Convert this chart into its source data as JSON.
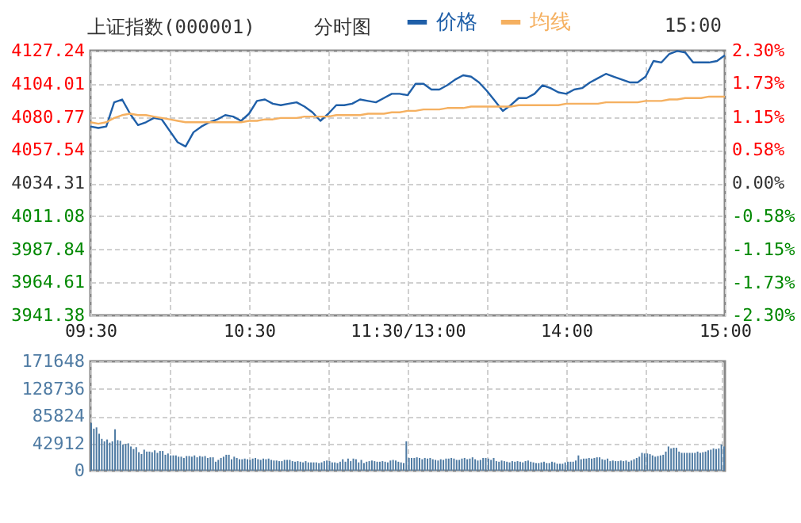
{
  "chart_data": [
    {
      "type": "line",
      "title": "上证指数(000001)",
      "subtitle": "分时图",
      "annotations": [
        "15:00"
      ],
      "categories": [
        "09:30",
        null,
        null,
        null,
        null,
        null,
        null,
        null,
        null,
        null,
        null,
        null,
        null,
        null,
        null,
        null,
        null,
        null,
        null,
        null,
        "10:30",
        null,
        null,
        null,
        null,
        null,
        null,
        null,
        null,
        null,
        null,
        null,
        null,
        null,
        null,
        null,
        null,
        null,
        null,
        null,
        "11:30/13:00",
        null,
        null,
        null,
        null,
        null,
        null,
        null,
        null,
        null,
        null,
        null,
        null,
        null,
        null,
        null,
        null,
        null,
        null,
        null,
        "14:00",
        null,
        null,
        null,
        null,
        null,
        null,
        null,
        null,
        null,
        null,
        null,
        null,
        null,
        null,
        null,
        null,
        null,
        null,
        null,
        "15:00"
      ],
      "series": [
        {
          "name": "价格",
          "color": "#1f5fa8",
          "values": [
            4074,
            4073,
            4074,
            4091,
            4093,
            4083,
            4075,
            4077,
            4080,
            4079,
            4071,
            4063,
            4060,
            4070,
            4074,
            4077,
            4079,
            4082,
            4081,
            4078,
            4083,
            4092,
            4093,
            4090,
            4089,
            4090,
            4091,
            4088,
            4084,
            4078,
            4083,
            4089,
            4089,
            4090,
            4093,
            4092,
            4091,
            4094,
            4097,
            4097,
            4096,
            4104,
            4104,
            4100,
            4100,
            4103,
            4107,
            4110,
            4109,
            4105,
            4099,
            4092,
            4085,
            4089,
            4094,
            4094,
            4097,
            4103,
            4101,
            4098,
            4097,
            4100,
            4101,
            4105,
            4108,
            4111,
            4109,
            4107,
            4105,
            4105,
            4109,
            4120,
            4119,
            4125,
            4127,
            4126,
            4119,
            4119,
            4119,
            4120,
            4124
          ]
        },
        {
          "name": "均线",
          "color": "#f5b060",
          "values": [
            4077,
            4076,
            4077,
            4080,
            4082,
            4083,
            4082,
            4082,
            4081,
            4080,
            4079,
            4078,
            4077,
            4077,
            4077,
            4077,
            4077,
            4077,
            4077,
            4077,
            4078,
            4078,
            4079,
            4079,
            4080,
            4080,
            4080,
            4081,
            4081,
            4081,
            4081,
            4082,
            4082,
            4082,
            4082,
            4083,
            4083,
            4083,
            4084,
            4084,
            4085,
            4085,
            4086,
            4086,
            4086,
            4087,
            4087,
            4087,
            4088,
            4088,
            4088,
            4088,
            4088,
            4088,
            4089,
            4089,
            4089,
            4089,
            4089,
            4089,
            4090,
            4090,
            4090,
            4090,
            4090,
            4091,
            4091,
            4091,
            4091,
            4091,
            4092,
            4092,
            4092,
            4093,
            4093,
            4094,
            4094,
            4094,
            4095,
            4095,
            4095
          ]
        }
      ],
      "ylim": [
        3941.38,
        4127.24
      ],
      "yticks": [
        3941.38,
        3964.61,
        3987.84,
        4011.08,
        4034.31,
        4057.54,
        4080.77,
        4104.01,
        4127.24
      ],
      "y2lim": [
        -2.3,
        2.3
      ],
      "y2ticks": [
        {
          "value": -2.3,
          "label": "-2.30%"
        },
        {
          "value": -1.73,
          "label": "-1.73%"
        },
        {
          "value": -1.15,
          "label": "-1.15%"
        },
        {
          "value": -0.58,
          "label": "-0.58%"
        },
        {
          "value": 0,
          "label": "0.00%"
        },
        {
          "value": 0.58,
          "label": "0.58%"
        },
        {
          "value": 1.15,
          "label": "1.15%"
        },
        {
          "value": 1.73,
          "label": "1.73%"
        },
        {
          "value": 2.3,
          "label": "2.30%"
        }
      ],
      "grid": true,
      "legend": "top"
    },
    {
      "type": "bar",
      "color": "#4f7ba3",
      "categories": [
        null,
        null,
        null,
        null,
        null,
        null,
        null,
        null,
        null,
        null,
        null,
        null,
        null,
        null,
        null,
        null,
        null,
        null,
        null,
        null,
        null,
        null,
        null,
        null,
        null,
        null,
        null,
        null,
        null,
        null,
        null,
        null,
        null,
        null,
        null,
        null,
        null,
        null,
        null,
        null,
        null,
        null,
        null,
        null,
        null,
        null,
        null,
        null,
        null,
        null,
        null,
        null,
        null,
        null,
        null,
        null,
        null,
        null,
        null,
        null,
        null,
        null,
        null,
        null,
        null,
        null,
        null,
        null,
        null,
        null,
        null,
        null,
        null,
        null,
        null,
        null,
        null,
        null,
        null,
        null,
        null,
        null,
        null,
        null,
        null,
        null,
        null,
        null,
        null,
        null,
        null,
        null,
        null,
        null,
        null,
        null,
        null,
        null,
        null,
        null,
        null,
        null,
        null,
        null,
        null,
        null,
        null,
        null,
        null,
        null,
        null,
        null,
        null,
        null,
        null,
        null,
        null,
        null,
        null,
        null,
        null,
        null,
        null,
        null,
        null,
        null,
        null,
        null,
        null,
        null,
        null,
        null,
        null,
        null,
        null,
        null,
        null,
        null,
        null,
        null,
        null,
        null,
        null,
        null,
        null,
        null,
        null,
        null,
        null,
        null,
        null,
        null,
        null,
        null,
        null,
        null,
        null,
        null,
        null,
        null,
        null,
        null,
        null,
        null,
        null,
        null,
        null,
        null,
        null,
        null,
        null,
        null,
        null,
        null,
        null,
        null,
        null,
        null,
        null,
        null,
        null,
        null,
        null,
        null,
        null,
        null,
        null,
        null,
        null,
        null,
        null,
        null,
        null,
        null,
        null,
        null,
        null,
        null,
        null,
        null,
        null,
        null,
        null,
        null,
        null,
        null,
        null,
        null,
        null,
        null,
        null,
        null,
        null,
        null,
        null,
        null,
        null,
        null,
        null,
        null,
        null,
        null,
        null,
        null,
        null,
        null,
        null,
        null,
        null,
        null,
        null,
        null,
        null,
        null,
        null,
        null,
        null,
        null,
        null,
        null
      ],
      "values": [
        75000,
        66000,
        68000,
        58000,
        50000,
        46000,
        49000,
        44000,
        46000,
        65000,
        48000,
        47000,
        41000,
        42000,
        43000,
        38000,
        34000,
        37000,
        29000,
        26000,
        33000,
        30000,
        30000,
        29000,
        32000,
        28000,
        31000,
        31000,
        25000,
        27000,
        24000,
        24000,
        24000,
        22000,
        22000,
        20000,
        23000,
        23000,
        22000,
        24000,
        21000,
        23000,
        22000,
        23000,
        20000,
        21000,
        21000,
        14000,
        17000,
        20000,
        22000,
        25000,
        25000,
        18000,
        22000,
        20000,
        18000,
        18000,
        19000,
        18000,
        17000,
        19000,
        20000,
        18000,
        17000,
        19000,
        18000,
        19000,
        17000,
        16000,
        16000,
        15000,
        15000,
        17000,
        17000,
        17000,
        15000,
        14000,
        15000,
        14000,
        13000,
        15000,
        13000,
        13000,
        13000,
        13000,
        12000,
        13000,
        15000,
        16000,
        15000,
        13000,
        13000,
        12000,
        14000,
        18000,
        14000,
        19000,
        15000,
        19000,
        18000,
        13000,
        17000,
        12000,
        14000,
        15000,
        16000,
        15000,
        14000,
        14000,
        15000,
        14000,
        13000,
        16000,
        17000,
        16000,
        14000,
        13000,
        12000,
        46000,
        20000,
        20000,
        20000,
        21000,
        20000,
        18000,
        20000,
        19000,
        20000,
        18000,
        17000,
        16000,
        18000,
        17000,
        19000,
        19000,
        20000,
        19000,
        17000,
        17000,
        19000,
        20000,
        18000,
        19000,
        21000,
        18000,
        16000,
        17000,
        20000,
        20000,
        19000,
        17000,
        20000,
        15000,
        14000,
        16000,
        15000,
        14000,
        13000,
        15000,
        14000,
        15000,
        14000,
        13000,
        15000,
        16000,
        14000,
        13000,
        12000,
        12000,
        13000,
        14000,
        12000,
        12000,
        14000,
        13000,
        11000,
        11000,
        11000,
        13000,
        14000,
        14000,
        14000,
        16000,
        24000,
        18000,
        19000,
        19000,
        20000,
        19000,
        20000,
        21000,
        21000,
        18000,
        17000,
        19000,
        15000,
        16000,
        15000,
        15000,
        16000,
        15000,
        16000,
        14000,
        16000,
        18000,
        20000,
        22000,
        28000,
        27000,
        27000,
        26000,
        24000,
        22000,
        23000,
        24000,
        25000,
        30000,
        38000,
        35000,
        36000,
        36000,
        30000,
        28000,
        28000,
        28000,
        28000,
        28000,
        28000,
        30000,
        28000,
        29000,
        30000,
        32000,
        33000,
        35000,
        34000,
        35000,
        41000,
        38000
      ],
      "ylim": [
        0,
        171648
      ],
      "yticks": [
        0,
        42912,
        85824,
        128736,
        171648
      ],
      "grid": true
    }
  ]
}
